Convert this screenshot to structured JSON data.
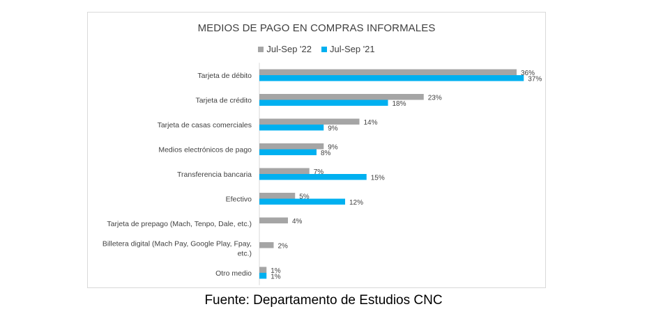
{
  "chart_data": {
    "type": "bar",
    "orientation": "horizontal",
    "title": "MEDIOS DE PAGO EN COMPRAS INFORMALES",
    "categories": [
      "Tarjeta de débito",
      "Tarjeta de crédito",
      "Tarjeta de casas comerciales",
      "Medios electrónicos de pago",
      "Transferencia bancaria",
      "Efectivo",
      [
        "Tarjeta de prepago (Mach, Tenpo, Dale, etc.)"
      ],
      [
        "Billetera digital (Mach Pay, Google Play, Fpay,",
        "etc.)"
      ],
      "Otro medio"
    ],
    "series": [
      {
        "name": "Jul-Sep '22",
        "color": "#a5a5a5",
        "values": [
          36,
          23,
          14,
          9,
          7,
          5,
          4,
          2,
          1
        ]
      },
      {
        "name": "Jul-Sep '21",
        "color": "#00b0f0",
        "values": [
          37,
          18,
          9,
          8,
          15,
          12,
          null,
          null,
          1
        ]
      }
    ],
    "value_suffix": "%",
    "xlim": [
      0,
      40
    ],
    "legend_position": "top",
    "grid": false
  },
  "source": "Fuente: Departamento de Estudios CNC"
}
